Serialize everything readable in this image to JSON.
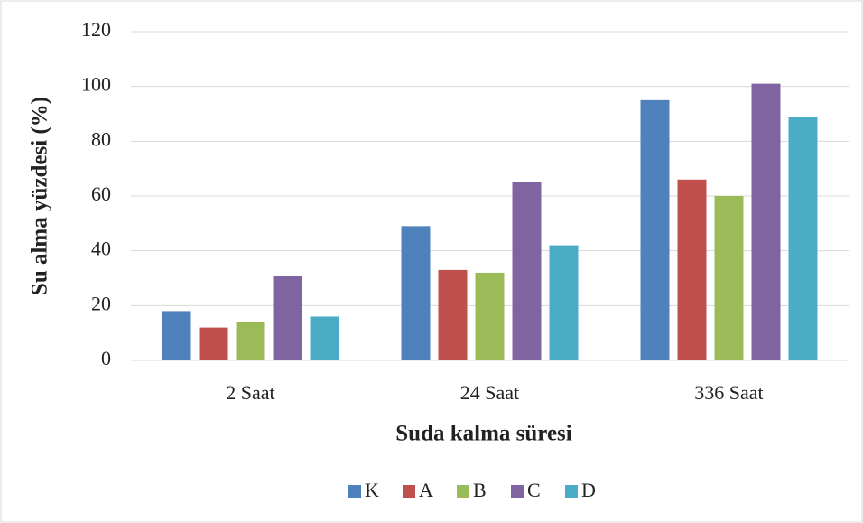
{
  "chart_data": {
    "type": "bar",
    "categories": [
      "2 Saat",
      "24 Saat",
      "336 Saat"
    ],
    "series": [
      {
        "name": "K",
        "color": "#4f81bd",
        "values": [
          18,
          49,
          95
        ]
      },
      {
        "name": "A",
        "color": "#c0504d",
        "values": [
          12,
          33,
          66
        ]
      },
      {
        "name": "B",
        "color": "#9bbb59",
        "values": [
          14,
          32,
          60
        ]
      },
      {
        "name": "C",
        "color": "#8064a2",
        "values": [
          31,
          65,
          101
        ]
      },
      {
        "name": "D",
        "color": "#4bacc6",
        "values": [
          16,
          42,
          89
        ]
      }
    ],
    "xlabel": "Suda kalma süresi",
    "ylabel": "Su alma yüzdesi (%)",
    "ylim": [
      0,
      120
    ],
    "yticks": [
      0,
      20,
      40,
      60,
      80,
      100,
      120
    ],
    "grid": true,
    "legend": "bottom"
  }
}
